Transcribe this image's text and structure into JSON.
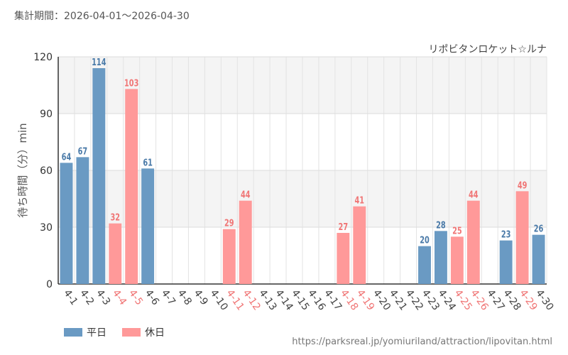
{
  "header": {
    "period": "集計期間：2026-04-01～2026-04-30"
  },
  "colors": {
    "weekday": "#6a9ac3",
    "holiday": "#ff9999",
    "weekday_text": "#4a7aa8",
    "holiday_text": "#f07575"
  },
  "legend": {
    "weekday": "平日",
    "holiday": "休日"
  },
  "source": "https://parksreal.jp/yomiuriland/attraction/lipovitan.html",
  "chart_data": {
    "type": "bar",
    "title": "リポビタンロケット☆ルナ",
    "ylabel": "待ち時間（分）min",
    "xlabel": "",
    "ylim": [
      0,
      120
    ],
    "yticks": [
      0,
      30,
      60,
      90,
      120
    ],
    "grid": true,
    "legend_position": "bottom-left",
    "categories": [
      "4-1",
      "4-2",
      "4-3",
      "4-4",
      "4-5",
      "4-6",
      "4-7",
      "4-8",
      "4-9",
      "4-10",
      "4-11",
      "4-12",
      "4-13",
      "4-14",
      "4-15",
      "4-16",
      "4-17",
      "4-18",
      "4-19",
      "4-20",
      "4-21",
      "4-22",
      "4-23",
      "4-24",
      "4-25",
      "4-26",
      "4-27",
      "4-28",
      "4-29",
      "4-30"
    ],
    "values": [
      64,
      67,
      114,
      32,
      103,
      61,
      null,
      null,
      null,
      null,
      29,
      44,
      null,
      null,
      null,
      null,
      null,
      27,
      41,
      null,
      null,
      null,
      20,
      28,
      25,
      44,
      null,
      23,
      49,
      26
    ],
    "day_type": [
      "平日",
      "平日",
      "平日",
      "休日",
      "休日",
      "平日",
      "平日",
      "平日",
      "平日",
      "平日",
      "休日",
      "休日",
      "平日",
      "平日",
      "平日",
      "平日",
      "平日",
      "休日",
      "休日",
      "平日",
      "平日",
      "平日",
      "平日",
      "平日",
      "休日",
      "休日",
      "平日",
      "平日",
      "休日",
      "平日"
    ]
  }
}
